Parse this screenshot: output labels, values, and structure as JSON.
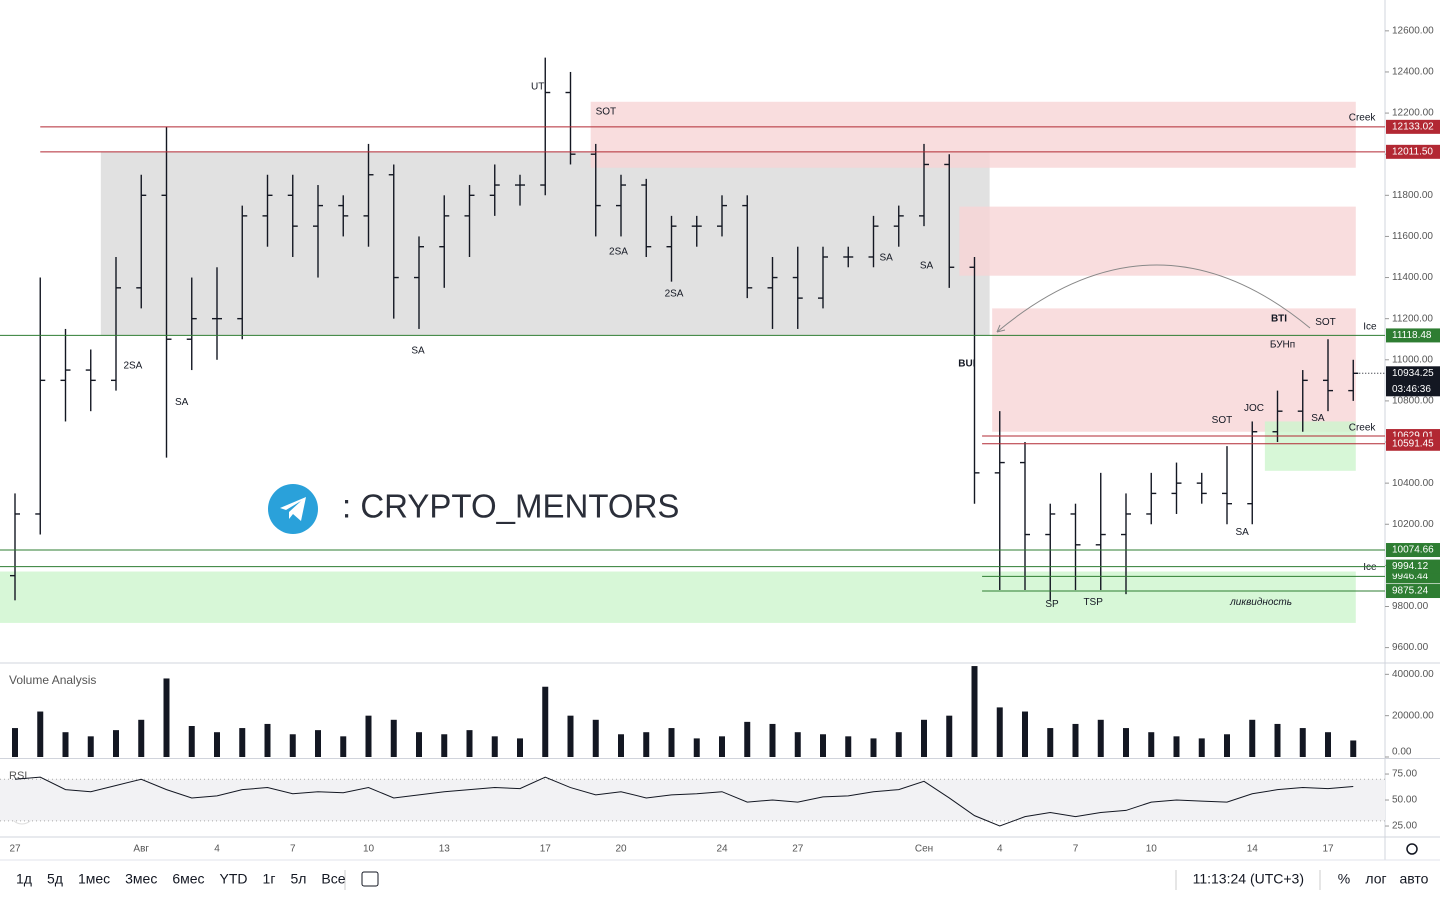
{
  "chart_data": [
    {
      "type": "ohlc",
      "categories": [
        "27",
        null,
        null,
        null,
        null,
        "Авг",
        null,
        null,
        "4",
        null,
        null,
        "7",
        null,
        null,
        "10",
        null,
        null,
        "13",
        null,
        null,
        null,
        "17",
        null,
        null,
        "20",
        null,
        null,
        null,
        "24",
        null,
        null,
        "27",
        null,
        null,
        null,
        null,
        "Сен",
        null,
        null,
        "4",
        null,
        null,
        "7",
        null,
        null,
        "10",
        null,
        null,
        null,
        "14",
        null,
        null,
        "17",
        null
      ],
      "ohlc": [
        [
          9950,
          10350,
          9830,
          10250
        ],
        [
          10250,
          11400,
          10150,
          10900
        ],
        [
          10900,
          11150,
          10700,
          10950
        ],
        [
          10950,
          11050,
          10750,
          10900
        ],
        [
          10900,
          11500,
          10850,
          11350
        ],
        [
          11350,
          11900,
          11250,
          11800
        ],
        [
          11800,
          12133,
          10524,
          11100
        ],
        [
          11100,
          11400,
          10950,
          11200
        ],
        [
          11200,
          11450,
          11000,
          11200
        ],
        [
          11200,
          11750,
          11100,
          11700
        ],
        [
          11700,
          11900,
          11550,
          11800
        ],
        [
          11800,
          11900,
          11500,
          11650
        ],
        [
          11650,
          11850,
          11400,
          11750
        ],
        [
          11750,
          11800,
          11600,
          11700
        ],
        [
          11700,
          12050,
          11550,
          11900
        ],
        [
          11900,
          11950,
          11200,
          11400
        ],
        [
          11400,
          11600,
          11150,
          11550
        ],
        [
          11550,
          11800,
          11350,
          11700
        ],
        [
          11700,
          11850,
          11500,
          11800
        ],
        [
          11800,
          11950,
          11700,
          11850
        ],
        [
          11850,
          11900,
          11750,
          11850
        ],
        [
          11850,
          12470,
          11800,
          12300
        ],
        [
          12300,
          12400,
          11950,
          12000
        ],
        [
          12000,
          12050,
          11600,
          11750
        ],
        [
          11750,
          11900,
          11600,
          11850
        ],
        [
          11850,
          11880,
          11500,
          11550
        ],
        [
          11550,
          11700,
          11380,
          11650
        ],
        [
          11650,
          11700,
          11550,
          11650
        ],
        [
          11650,
          11800,
          11600,
          11750
        ],
        [
          11750,
          11800,
          11300,
          11350
        ],
        [
          11350,
          11500,
          11150,
          11400
        ],
        [
          11400,
          11550,
          11150,
          11300
        ],
        [
          11300,
          11550,
          11250,
          11500
        ],
        [
          11500,
          11550,
          11450,
          11500
        ],
        [
          11500,
          11700,
          11450,
          11650
        ],
        [
          11650,
          11750,
          11550,
          11700
        ],
        [
          11700,
          12050,
          11650,
          11950
        ],
        [
          11950,
          12000,
          11350,
          11450
        ],
        [
          11450,
          11500,
          10300,
          10450
        ],
        [
          10450,
          10750,
          9880,
          10500
        ],
        [
          10500,
          10600,
          9880,
          10150
        ],
        [
          10150,
          10300,
          9830,
          10250
        ],
        [
          10250,
          10300,
          9880,
          10100
        ],
        [
          10100,
          10450,
          9880,
          10150
        ],
        [
          10150,
          10350,
          9860,
          10250
        ],
        [
          10250,
          10450,
          10200,
          10350
        ],
        [
          10350,
          10500,
          10250,
          10400
        ],
        [
          10400,
          10450,
          10300,
          10350
        ],
        [
          10350,
          10580,
          10200,
          10300
        ],
        [
          10300,
          10700,
          10200,
          10650
        ],
        [
          10650,
          10850,
          10600,
          10750
        ],
        [
          10750,
          10950,
          10650,
          10900
        ],
        [
          10900,
          11100,
          10750,
          10850
        ],
        [
          10850,
          11000,
          10800,
          10934.25
        ]
      ],
      "color": "#131722",
      "ylim": [
        9530,
        12750
      ],
      "yticks": [
        {
          "value": 9600,
          "label": "9600.00"
        },
        {
          "value": 9800,
          "label": "9800.00"
        },
        {
          "value": 10000,
          "label": "10000.00"
        },
        {
          "value": 10200,
          "label": "10200.00"
        },
        {
          "value": 10400,
          "label": "10400.00"
        },
        {
          "value": 10600,
          "label": "10600.00"
        },
        {
          "value": 10800,
          "label": "10800.00"
        },
        {
          "value": 11000,
          "label": "11000.00"
        },
        {
          "value": 11200,
          "label": "11200.00"
        },
        {
          "value": 11400,
          "label": "11400.00"
        },
        {
          "value": 11600,
          "label": "11600.00"
        },
        {
          "value": 11800,
          "label": "11800.00"
        },
        {
          "value": 12000,
          "label": "12000.00"
        },
        {
          "value": 12200,
          "label": "12200.00"
        },
        {
          "value": 12400,
          "label": "12400.00"
        },
        {
          "value": 12600,
          "label": "12600.00"
        }
      ],
      "zones": [
        {
          "x": [
            3.4,
            38.6
          ],
          "y": [
            11118.48,
            12011.5
          ],
          "color": "#d9d9d9"
        },
        {
          "x": [
            22.8,
            53.1
          ],
          "y": [
            11934,
            12255
          ],
          "color": "#f7d4d6"
        },
        {
          "x": [
            37.4,
            53.1
          ],
          "y": [
            11409,
            11745
          ],
          "color": "#f7d4d6"
        },
        {
          "x": [
            38.7,
            53.1
          ],
          "y": [
            10650,
            11250
          ],
          "color": "#f7d4d6"
        },
        {
          "x": [
            49.5,
            53.1
          ],
          "y": [
            10460,
            10700
          ],
          "color": "#cdf5cd"
        },
        {
          "x": [
            -1,
            53.1
          ],
          "y": [
            9720,
            9970
          ],
          "color": "#cdf5cd"
        }
      ],
      "levels": [
        {
          "value": 12133.02,
          "label": "12133.02",
          "color": "#b22833",
          "from": 1
        },
        {
          "value": 12011.5,
          "label": "12011.50",
          "color": "#b22833",
          "from": 1
        },
        {
          "value": 11118.48,
          "label": "11118.48",
          "color": "#2e7d32",
          "from": -1
        },
        {
          "value": 10629.01,
          "label": "10629.01",
          "color": "#b22833",
          "from": 38.3
        },
        {
          "value": 10591.45,
          "label": "10591.45",
          "color": "#b22833",
          "from": 38.3
        },
        {
          "value": 10074.66,
          "label": "10074.66",
          "color": "#2e7d32",
          "from": -1
        },
        {
          "value": 9946.44,
          "label": "9946.44",
          "color": "#2e7d32",
          "from": 38.3
        },
        {
          "value": 9994.12,
          "label": "9994.12",
          "color": "#2e7d32",
          "from": -1
        },
        {
          "value": 9875.24,
          "label": "9875.24",
          "color": "#2e7d32",
          "from": 38.3
        }
      ],
      "last": {
        "value": 10934.25,
        "label": "10934.25",
        "countdown": "03:46:36"
      },
      "annotations": [
        {
          "text": "UT",
          "x": 20.7,
          "y": 12328
        },
        {
          "text": "SOT",
          "x": 23.4,
          "y": 12206
        },
        {
          "text": "2SA",
          "x": 4.67,
          "y": 10971
        },
        {
          "text": "SA",
          "x": 6.6,
          "y": 10792
        },
        {
          "text": "SA",
          "x": 15.96,
          "y": 11044
        },
        {
          "text": "2SA",
          "x": 23.9,
          "y": 11526
        },
        {
          "text": "2SA",
          "x": 26.1,
          "y": 11321
        },
        {
          "text": "SA",
          "x": 34.5,
          "y": 11496
        },
        {
          "text": "SA",
          "x": 36.1,
          "y": 11458
        },
        {
          "text": "BUI",
          "x": 37.7,
          "y": 10981,
          "bold": true
        },
        {
          "text": "BTI",
          "x": 50.06,
          "y": 11200,
          "bold": true
        },
        {
          "text": "БУНп",
          "x": 50.2,
          "y": 11073
        },
        {
          "text": "SOT",
          "x": 51.9,
          "y": 11181
        },
        {
          "text": "SOT",
          "x": 47.8,
          "y": 10705
        },
        {
          "text": "JOC",
          "x": 49.07,
          "y": 10763
        },
        {
          "text": "SA",
          "x": 51.6,
          "y": 10714
        },
        {
          "text": "SA",
          "x": 48.6,
          "y": 10160
        },
        {
          "text": "SP",
          "x": 41.07,
          "y": 9810
        },
        {
          "text": "TSP",
          "x": 42.7,
          "y": 9820
        },
        {
          "text": "ликвидность",
          "x": 49.35,
          "y": 9820,
          "italic": true
        },
        {
          "text": "Creek",
          "x": 53.35,
          "y": 12177
        },
        {
          "text": "Creek",
          "x": 53.35,
          "y": 10670
        },
        {
          "text": "Ice",
          "x": 53.66,
          "y": 11161
        },
        {
          "text": "Ice",
          "x": 53.66,
          "y": 9990
        }
      ]
    },
    {
      "type": "bar",
      "title": "Volume Analysis",
      "color": "#131722",
      "values": [
        14000,
        22000,
        12000,
        10000,
        13000,
        18000,
        38000,
        15000,
        12000,
        14000,
        16000,
        11000,
        13000,
        10000,
        20000,
        18000,
        12000,
        11000,
        13000,
        10000,
        9000,
        34000,
        20000,
        18000,
        11000,
        12000,
        14000,
        9000,
        10000,
        17000,
        16000,
        12000,
        11000,
        10000,
        9000,
        12000,
        18000,
        20000,
        44000,
        24000,
        22000,
        14000,
        16000,
        18000,
        14000,
        12000,
        10000,
        9000,
        11000,
        18000,
        16000,
        14000,
        12000,
        8000
      ],
      "ylim": [
        0,
        45000
      ],
      "yticks": [
        {
          "value": 0,
          "label": "0.00"
        },
        {
          "value": 20000,
          "label": "20000.00"
        },
        {
          "value": 40000,
          "label": "40000.00"
        }
      ]
    },
    {
      "type": "line",
      "title": "RSI",
      "color": "#131722",
      "values": [
        70,
        72,
        60,
        58,
        64,
        70,
        60,
        52,
        54,
        60,
        62,
        56,
        58,
        57,
        62,
        52,
        55,
        58,
        60,
        62,
        61,
        72,
        62,
        55,
        58,
        52,
        55,
        56,
        58,
        48,
        50,
        48,
        53,
        54,
        58,
        60,
        68,
        52,
        35,
        25,
        34,
        38,
        34,
        38,
        40,
        48,
        50,
        49,
        48,
        56,
        60,
        62,
        61,
        63
      ],
      "bands": [
        30,
        70
      ],
      "ylim": [
        15.4,
        88.5
      ],
      "yticks": [
        {
          "value": 25,
          "label": "25.00"
        },
        {
          "value": 50,
          "label": "50.00"
        },
        {
          "value": 75,
          "label": "75.00"
        }
      ]
    }
  ],
  "watermark": ": CRYPTO_MENTORS",
  "toolbar": {
    "ranges": [
      "1д",
      "5д",
      "1мес",
      "3мес",
      "6мес",
      "YTD",
      "1г",
      "5л",
      "Все"
    ],
    "clock": "11:13:24 (UTC+3)",
    "options": [
      "%",
      "лог",
      "авто"
    ]
  }
}
